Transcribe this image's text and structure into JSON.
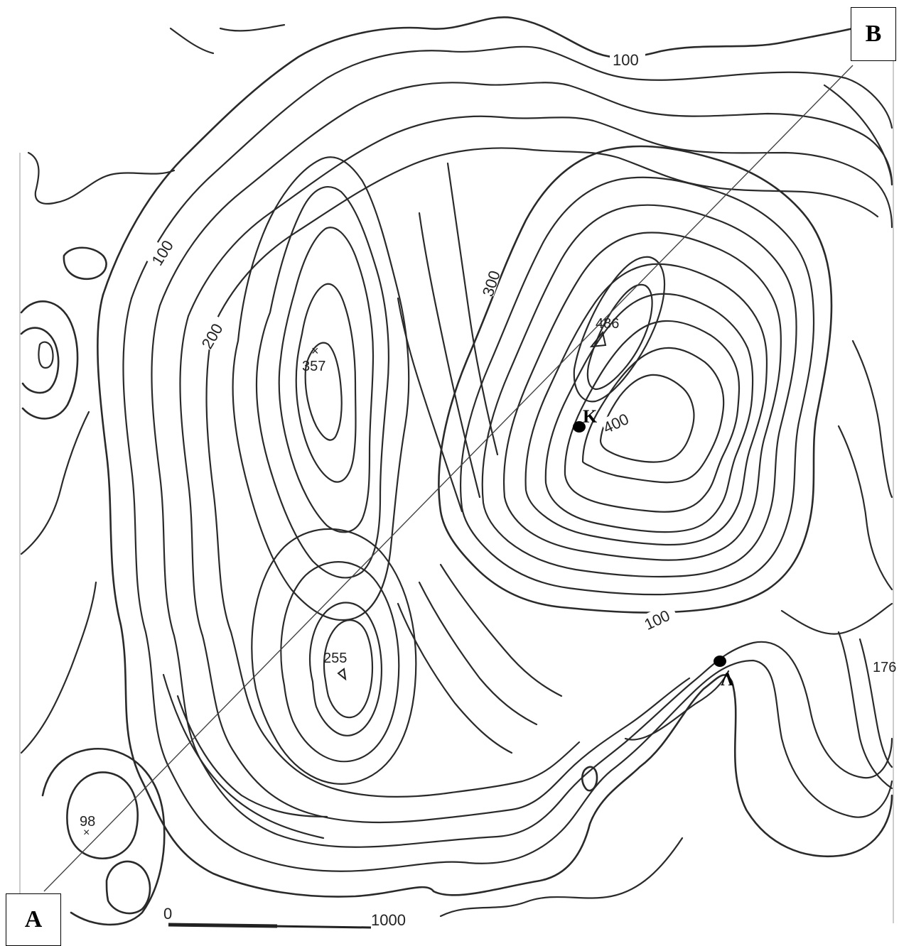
{
  "corners": {
    "a_label": "A",
    "b_label": "B"
  },
  "contour_labels": [
    "100",
    "100",
    "100",
    "200",
    "300",
    "400"
  ],
  "peaks": [
    {
      "label": "357",
      "symbol": "x"
    },
    {
      "label": "486",
      "symbol": "triangle"
    },
    {
      "label": "255",
      "symbol": "triangle"
    },
    {
      "label": "98",
      "symbol": "x"
    },
    {
      "label": "176",
      "symbol": "none"
    }
  ],
  "points": [
    {
      "label": "Κ"
    },
    {
      "label": "Λ"
    }
  ],
  "scale_bar": {
    "start_label": "0",
    "end_label": "1000"
  },
  "colors": {
    "ink": "#2a2a2a",
    "paper": "#ffffff"
  }
}
